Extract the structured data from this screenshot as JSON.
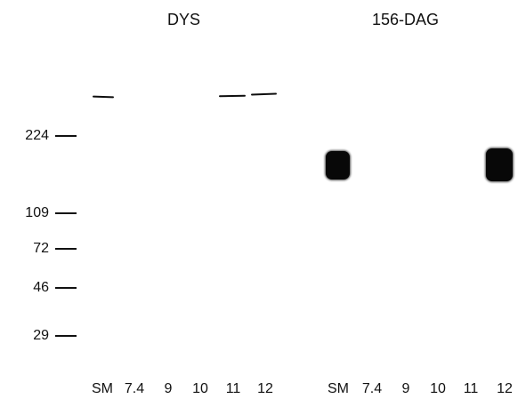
{
  "panels": {
    "dys": {
      "title": "DYS",
      "lanes": [
        "SM",
        "7.4",
        "9",
        "10",
        "11",
        "12"
      ]
    },
    "dag": {
      "title": "156-DAG",
      "lanes": [
        "SM",
        "7.4",
        "9",
        "10",
        "11",
        "12"
      ]
    }
  },
  "markers": [
    "224",
    "109",
    "72",
    "46",
    "29"
  ]
}
